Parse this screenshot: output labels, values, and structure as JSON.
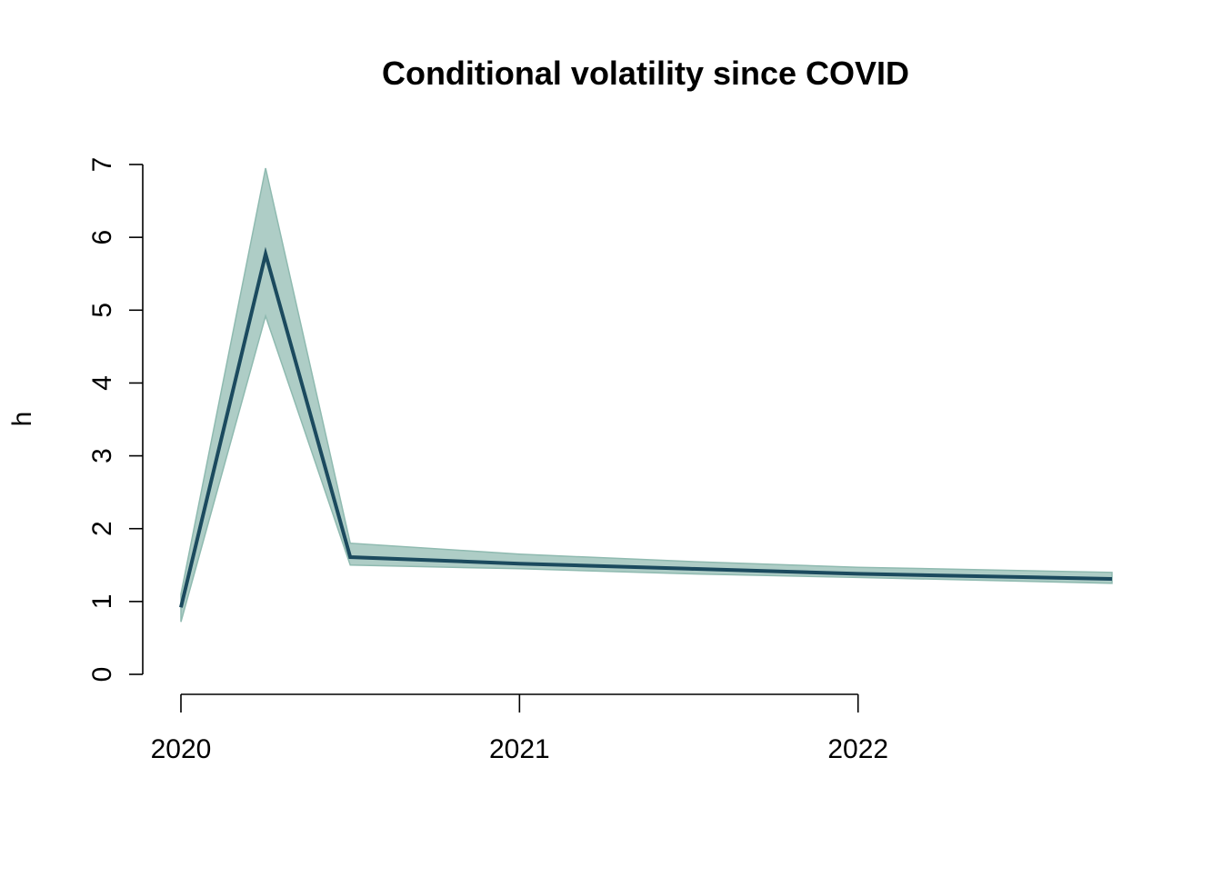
{
  "chart_data": {
    "type": "line",
    "title": "Conditional volatility since COVID",
    "xlabel": "",
    "ylabel": "h",
    "xlim": [
      2020.0,
      2022.75
    ],
    "ylim": [
      0,
      7
    ],
    "x_ticks": [
      2020,
      2021,
      2022
    ],
    "x_tick_labels": [
      "2020",
      "2021",
      "2022"
    ],
    "y_ticks": [
      0,
      1,
      2,
      3,
      4,
      5,
      6,
      7
    ],
    "y_tick_labels": [
      "0",
      "1",
      "2",
      "3",
      "4",
      "5",
      "6",
      "7"
    ],
    "grid": false,
    "legend": "none",
    "series": [
      {
        "x": [
          2020.0,
          2020.25,
          2020.5,
          2021.0,
          2021.5,
          2022.0,
          2022.75
        ],
        "values": [
          0.92,
          5.77,
          1.61,
          1.52,
          1.45,
          1.38,
          1.31
        ],
        "lower": [
          0.72,
          4.92,
          1.5,
          1.45,
          1.38,
          1.33,
          1.25
        ],
        "upper": [
          1.1,
          6.95,
          1.8,
          1.65,
          1.55,
          1.47,
          1.4
        ],
        "line_color": "#1b4a5e",
        "band_color": "#8fbab0"
      }
    ]
  }
}
